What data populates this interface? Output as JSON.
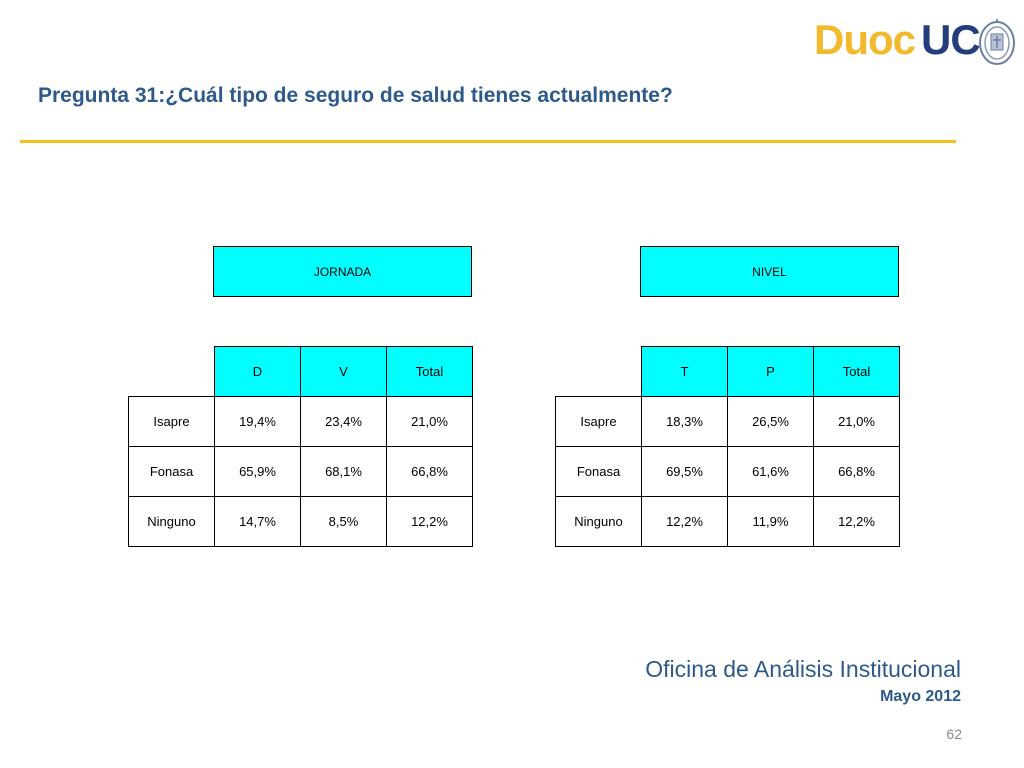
{
  "colors": {
    "title": "#2d5a8a",
    "rule": "#f0c020",
    "header_fill": "#00ffff",
    "logo_duoc": "#f3b92d",
    "logo_uc": "#233e7a",
    "footer": "#2d5a8a"
  },
  "logo": {
    "duoc": "Duoc",
    "uc": "UC",
    "seal_icon": "university-seal-icon"
  },
  "title": "Pregunta 31:¿Cuál tipo de seguro de salud tienes actualmente?",
  "tables": [
    {
      "group_header": "JORNADA",
      "columns": [
        "D",
        "V",
        "Total"
      ],
      "rows": [
        {
          "label": "Isapre",
          "values": [
            "19,4%",
            "23,4%",
            "21,0%"
          ]
        },
        {
          "label": "Fonasa",
          "values": [
            "65,9%",
            "68,1%",
            "66,8%"
          ]
        },
        {
          "label": "Ninguno",
          "values": [
            "14,7%",
            "8,5%",
            "12,2%"
          ]
        }
      ]
    },
    {
      "group_header": "NIVEL",
      "columns": [
        "T",
        "P",
        "Total"
      ],
      "rows": [
        {
          "label": "Isapre",
          "values": [
            "18,3%",
            "26,5%",
            "21,0%"
          ]
        },
        {
          "label": "Fonasa",
          "values": [
            "69,5%",
            "61,6%",
            "66,8%"
          ]
        },
        {
          "label": "Ninguno",
          "values": [
            "12,2%",
            "11,9%",
            "12,2%"
          ]
        }
      ]
    }
  ],
  "footer": {
    "office": "Oficina de Análisis Institucional",
    "date": "Mayo 2012",
    "page_number": "62"
  }
}
